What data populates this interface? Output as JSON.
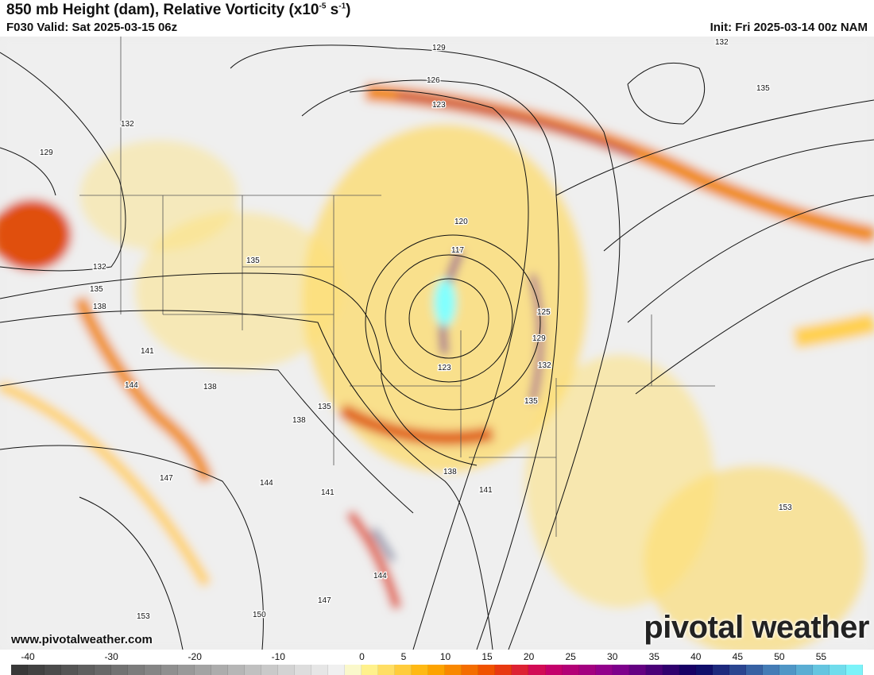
{
  "header": {
    "title": "850 mb Height (dam), Relative Vorticity (x10",
    "title_exp1": "-5",
    "title_mid": " s",
    "title_exp2": "-1",
    "title_end": ")",
    "valid": "F030 Valid: Sat 2025-03-15 06z",
    "init": "Init: Fri 2025-03-14 00z NAM"
  },
  "map": {
    "contour_labels": [
      "129",
      "126",
      "123",
      "132",
      "135",
      "132",
      "129",
      "132",
      "135",
      "138",
      "135",
      "120",
      "117",
      "123",
      "125",
      "129",
      "132",
      "135",
      "141",
      "144",
      "138",
      "138",
      "135",
      "138",
      "144",
      "141",
      "141",
      "147",
      "144",
      "147",
      "150",
      "153",
      "153"
    ],
    "background_color": "#ececec",
    "contour_color": "#111111"
  },
  "footer": {
    "website": "www.pivotalweather.com",
    "logo": "pivotal weather"
  },
  "colorbar": {
    "ticks": [
      "-40",
      "-30",
      "-20",
      "-10",
      "0",
      "5",
      "10",
      "15",
      "20",
      "25",
      "30",
      "35",
      "40",
      "45",
      "50",
      "55"
    ],
    "tick_values": [
      -40,
      -30,
      -20,
      -10,
      0,
      5,
      10,
      15,
      20,
      25,
      30,
      35,
      40,
      45,
      50,
      55
    ],
    "range": [
      -42,
      60
    ],
    "stops": [
      {
        "v": -42,
        "c": "#333333"
      },
      {
        "v": -2,
        "c": "#f5f5f5"
      },
      {
        "v": 0,
        "c": "#fffaa0"
      },
      {
        "v": 8,
        "c": "#ffb000"
      },
      {
        "v": 16,
        "c": "#ee4400"
      },
      {
        "v": 22,
        "c": "#cc0066"
      },
      {
        "v": 30,
        "c": "#8a0090"
      },
      {
        "v": 40,
        "c": "#0a0060"
      },
      {
        "v": 50,
        "c": "#4a8ac0"
      },
      {
        "v": 60,
        "c": "#80ffff"
      }
    ]
  }
}
